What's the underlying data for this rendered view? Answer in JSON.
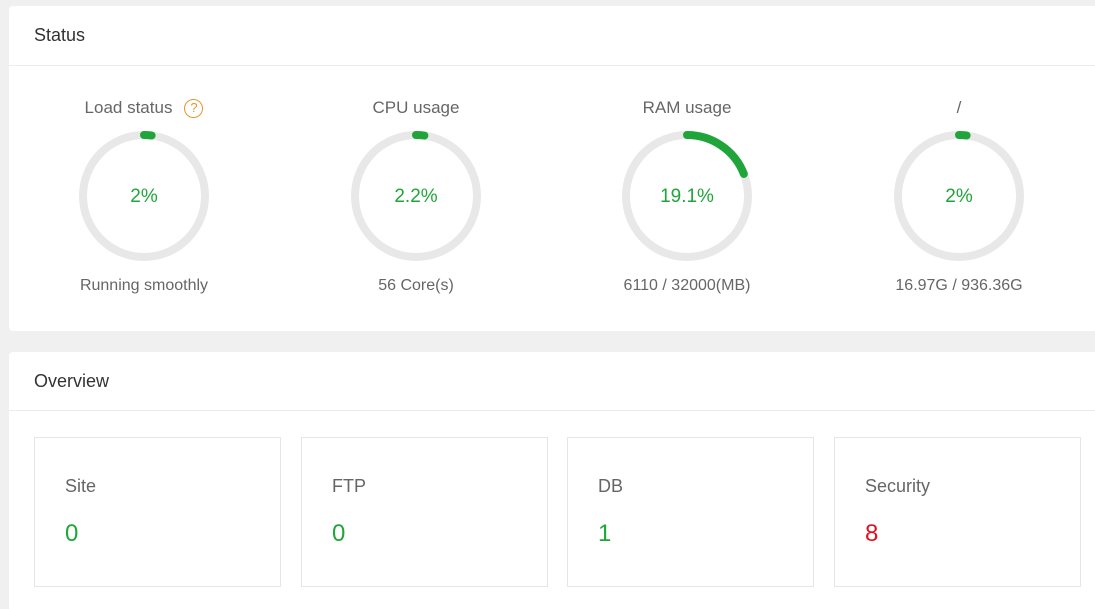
{
  "status": {
    "title": "Status",
    "gauges": [
      {
        "title": "Load status",
        "value_text": "2%",
        "percent": 2,
        "subtitle": "Running smoothly",
        "help_icon": "question-circle-icon"
      },
      {
        "title": "CPU usage",
        "value_text": "2.2%",
        "percent": 2.2,
        "subtitle": "56 Core(s)"
      },
      {
        "title": "RAM usage",
        "value_text": "19.1%",
        "percent": 19.1,
        "subtitle": "6110 / 32000(MB)"
      },
      {
        "title": "/",
        "value_text": "2%",
        "percent": 2,
        "subtitle": "16.97G / 936.36G"
      }
    ]
  },
  "overview": {
    "title": "Overview",
    "cards": [
      {
        "label": "Site",
        "value": "0",
        "color": "#20a53a"
      },
      {
        "label": "FTP",
        "value": "0",
        "color": "#20a53a"
      },
      {
        "label": "DB",
        "value": "1",
        "color": "#20a53a"
      },
      {
        "label": "Security",
        "value": "8",
        "color": "#e0101f"
      }
    ]
  },
  "colors": {
    "accent": "#20a53a",
    "track": "#e8e8e8",
    "warning": "#f0922b",
    "danger": "#e0101f"
  }
}
